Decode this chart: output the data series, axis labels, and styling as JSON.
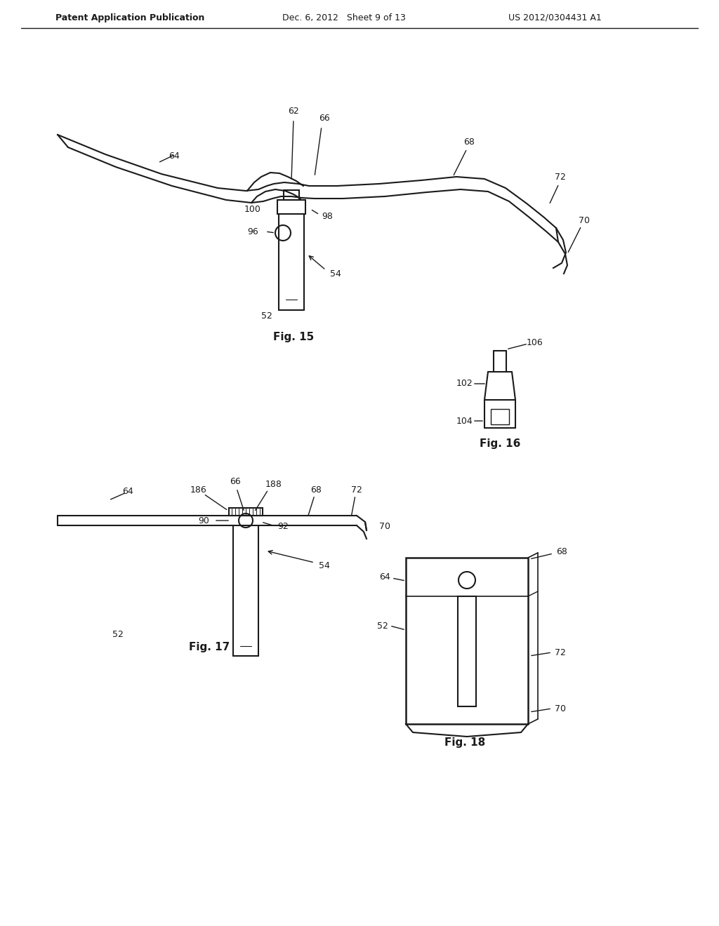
{
  "bg_color": "#ffffff",
  "line_color": "#1a1a1a",
  "text_color": "#1a1a1a",
  "header_left": "Patent Application Publication",
  "header_mid": "Dec. 6, 2012   Sheet 9 of 13",
  "header_right": "US 2012/0304431 A1",
  "fig15_label": "Fig. 15",
  "fig16_label": "Fig. 16",
  "fig17_label": "Fig. 17",
  "fig18_label": "Fig. 18"
}
